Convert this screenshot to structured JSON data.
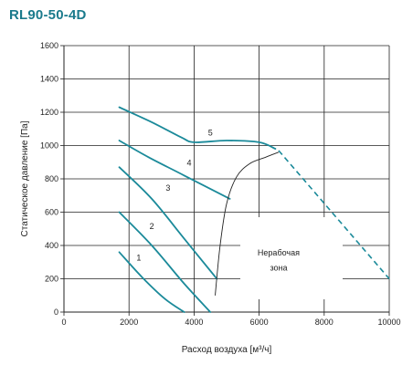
{
  "chart_data": {
    "type": "line",
    "title": "RL90-50-4D",
    "xlabel": "Расход воздуха [м³/ч]",
    "ylabel": "Статическое давление [Па]",
    "xlim": [
      0,
      10000
    ],
    "ylim": [
      0,
      1600
    ],
    "x_ticks": [
      0,
      2000,
      4000,
      6000,
      8000,
      10000
    ],
    "y_ticks": [
      0,
      200,
      400,
      600,
      800,
      1000,
      1200,
      1400,
      1600
    ],
    "x_tick_labels": [
      "0",
      "2000",
      "4000",
      "6000",
      "8000",
      "10000"
    ],
    "y_tick_labels": [
      "0",
      "200",
      "400",
      "600",
      "800",
      "1000",
      "1200",
      "1400",
      "1600"
    ],
    "grid": true,
    "series": [
      {
        "name": "1",
        "color": "#1b8a9a",
        "x": [
          1700,
          2400,
          3100,
          3700
        ],
        "y": [
          360,
          210,
          80,
          0
        ]
      },
      {
        "name": "2",
        "color": "#1b8a9a",
        "x": [
          1700,
          2700,
          3700,
          4500
        ],
        "y": [
          600,
          400,
          170,
          0
        ]
      },
      {
        "name": "3",
        "color": "#1b8a9a",
        "x": [
          1700,
          2700,
          3700,
          4700
        ],
        "y": [
          870,
          680,
          440,
          200
        ]
      },
      {
        "name": "4",
        "color": "#1b8a9a",
        "x": [
          1700,
          2600,
          3700,
          5100
        ],
        "y": [
          1030,
          930,
          820,
          680
        ]
      },
      {
        "name": "5",
        "color": "#1b8a9a",
        "x": [
          1700,
          2700,
          3600,
          4000,
          5000,
          6000,
          6500
        ],
        "y": [
          1230,
          1140,
          1050,
          1020,
          1030,
          1020,
          980
        ]
      }
    ],
    "boundary_line": {
      "color": "#222222",
      "x": [
        4650,
        4800,
        5000,
        5300,
        5700,
        6200,
        6600
      ],
      "y": [
        100,
        400,
        650,
        810,
        890,
        930,
        960
      ]
    },
    "extension_line": {
      "color": "#1b8a9a",
      "style": "dashed",
      "x": [
        6600,
        10000
      ],
      "y": [
        970,
        200
      ]
    },
    "annotations": [
      {
        "text": "Нерабочая",
        "x": 6600,
        "y": 340
      },
      {
        "text": "зона",
        "x": 6600,
        "y": 250
      }
    ],
    "curve_labels": [
      {
        "text": "1",
        "x": 2300,
        "y": 310
      },
      {
        "text": "2",
        "x": 2700,
        "y": 500
      },
      {
        "text": "3",
        "x": 3200,
        "y": 730
      },
      {
        "text": "4",
        "x": 3850,
        "y": 880
      },
      {
        "text": "5",
        "x": 4500,
        "y": 1060
      }
    ]
  }
}
